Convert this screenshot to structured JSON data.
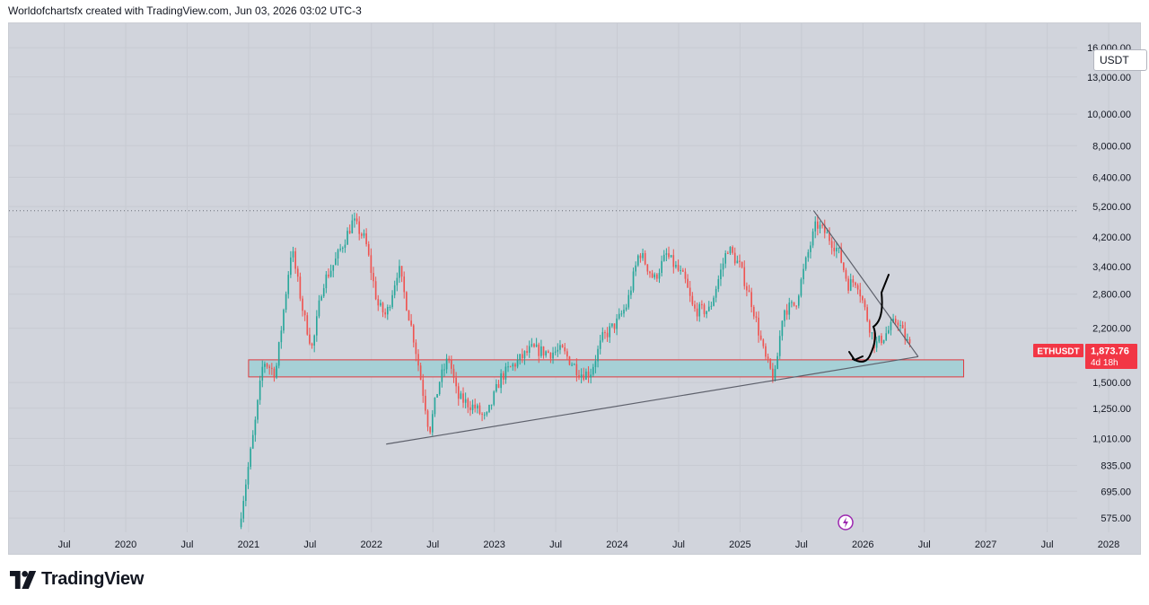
{
  "header": {
    "caption": "Worldofchartsfx created with TradingView.com, Jun 03, 2026 03:02 UTC-3"
  },
  "price_axis": {
    "currency": "USDT"
  },
  "symbol_tag": {
    "symbol": "ETHUSDT",
    "price": "1,873.76",
    "countdown": "4d 18h"
  },
  "footer": {
    "brand": "TradingView"
  },
  "colors": {
    "up": "#26a69a",
    "down": "#ef5350",
    "background": "#d1d4dc",
    "zone_fill": "#a6d0d6",
    "zone_border": "#e03a3e",
    "trendline": "#5d606b",
    "annotation": "#000000"
  },
  "chart_data": {
    "type": "candlestick",
    "symbol": "ETHUSDT",
    "interval": "weekly",
    "y_scale": "log",
    "ylim": [
      520,
      19000
    ],
    "y_ticks": [
      {
        "value": 575,
        "label": "575.00"
      },
      {
        "value": 695,
        "label": "695.00"
      },
      {
        "value": 835,
        "label": "835.00"
      },
      {
        "value": 1010,
        "label": "1,010.00"
      },
      {
        "value": 1250,
        "label": "1,250.00"
      },
      {
        "value": 1500,
        "label": "1,500.00"
      },
      {
        "value": 2200,
        "label": "2,200.00"
      },
      {
        "value": 2800,
        "label": "2,800.00"
      },
      {
        "value": 3400,
        "label": "3,400.00"
      },
      {
        "value": 4200,
        "label": "4,200.00"
      },
      {
        "value": 5200,
        "label": "5,200.00"
      },
      {
        "value": 6400,
        "label": "6,400.00"
      },
      {
        "value": 8000,
        "label": "8,000.00"
      },
      {
        "value": 10000,
        "label": "10,000.00"
      },
      {
        "value": 13000,
        "label": "13,000.00"
      },
      {
        "value": 16000,
        "label": "16,000.00"
      }
    ],
    "x_ticks": [
      {
        "t": 2019.5,
        "label": "Jul"
      },
      {
        "t": 2020.0,
        "label": "2020"
      },
      {
        "t": 2020.5,
        "label": "Jul"
      },
      {
        "t": 2021.0,
        "label": "2021"
      },
      {
        "t": 2021.5,
        "label": "Jul"
      },
      {
        "t": 2022.0,
        "label": "2022"
      },
      {
        "t": 2022.5,
        "label": "Jul"
      },
      {
        "t": 2023.0,
        "label": "2023"
      },
      {
        "t": 2023.5,
        "label": "Jul"
      },
      {
        "t": 2024.0,
        "label": "2024"
      },
      {
        "t": 2024.5,
        "label": "Jul"
      },
      {
        "t": 2025.0,
        "label": "2025"
      },
      {
        "t": 2025.5,
        "label": "Jul"
      },
      {
        "t": 2026.0,
        "label": "2026"
      },
      {
        "t": 2026.5,
        "label": "Jul"
      },
      {
        "t": 2027.0,
        "label": "2027"
      },
      {
        "t": 2027.5,
        "label": "Jul"
      },
      {
        "t": 2028.0,
        "label": "2028"
      }
    ],
    "xlim": [
      2019.05,
      2028.27
    ],
    "price_path": [
      [
        2020.92,
        540
      ],
      [
        2021.05,
        1100
      ],
      [
        2021.12,
        1750
      ],
      [
        2021.22,
        1600
      ],
      [
        2021.35,
        3900
      ],
      [
        2021.45,
        2400
      ],
      [
        2021.52,
        1900
      ],
      [
        2021.6,
        3000
      ],
      [
        2021.7,
        3500
      ],
      [
        2021.85,
        4700
      ],
      [
        2021.95,
        4100
      ],
      [
        2022.05,
        2600
      ],
      [
        2022.12,
        2400
      ],
      [
        2022.22,
        3400
      ],
      [
        2022.35,
        2000
      ],
      [
        2022.45,
        1200
      ],
      [
        2022.47,
        1050
      ],
      [
        2022.55,
        1500
      ],
      [
        2022.63,
        1800
      ],
      [
        2022.7,
        1350
      ],
      [
        2022.85,
        1250
      ],
      [
        2022.93,
        1150
      ],
      [
        2023.05,
        1550
      ],
      [
        2023.12,
        1650
      ],
      [
        2023.3,
        1900
      ],
      [
        2023.45,
        1850
      ],
      [
        2023.55,
        1880
      ],
      [
        2023.7,
        1600
      ],
      [
        2023.78,
        1600
      ],
      [
        2023.88,
        2050
      ],
      [
        2024.0,
        2300
      ],
      [
        2024.08,
        2600
      ],
      [
        2024.18,
        3800
      ],
      [
        2024.3,
        3100
      ],
      [
        2024.4,
        3700
      ],
      [
        2024.55,
        3100
      ],
      [
        2024.62,
        2500
      ],
      [
        2024.75,
        2500
      ],
      [
        2024.9,
        3900
      ],
      [
        2025.0,
        3400
      ],
      [
        2025.1,
        2600
      ],
      [
        2025.2,
        1800
      ],
      [
        2025.28,
        1520
      ],
      [
        2025.35,
        2500
      ],
      [
        2025.45,
        2600
      ],
      [
        2025.55,
        3700
      ],
      [
        2025.62,
        4600
      ],
      [
        2025.7,
        4300
      ],
      [
        2025.8,
        3800
      ],
      [
        2025.88,
        3000
      ],
      [
        2025.95,
        3100
      ],
      [
        2026.03,
        2400
      ],
      [
        2026.1,
        1950
      ],
      [
        2026.18,
        2100
      ],
      [
        2026.28,
        2350
      ],
      [
        2026.33,
        2100
      ],
      [
        2026.4,
        1873.76
      ]
    ],
    "support_zone": {
      "low": 1560,
      "high": 1760,
      "t_start": 2021.0,
      "t_end": 2026.82
    },
    "resistance_dotted": 5050,
    "trendline_rising": [
      [
        2022.12,
        970
      ],
      [
        2026.45,
        1800
      ]
    ],
    "trendline_falling": [
      [
        2025.6,
        5050
      ],
      [
        2026.45,
        1800
      ]
    ]
  }
}
